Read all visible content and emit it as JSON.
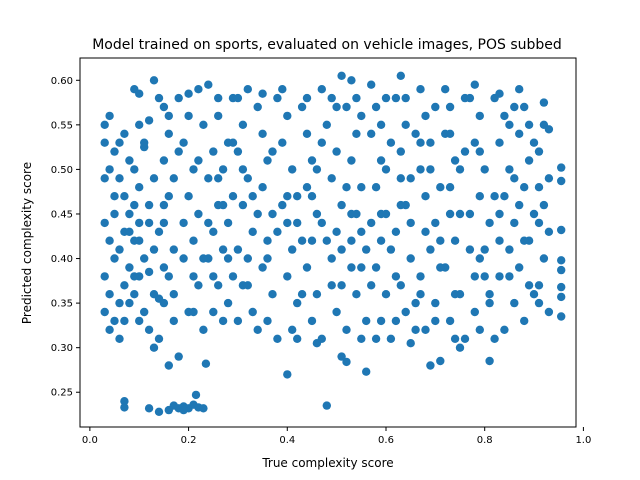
{
  "chart_data": {
    "type": "scatter",
    "title": "Model trained on sports, evaluated on vehicle images, POS subbed",
    "xlabel": "True complexity score",
    "ylabel": "Predicted complexity score",
    "xlim": [
      -0.02,
      0.985
    ],
    "ylim": [
      0.211,
      0.625
    ],
    "xticks": [
      0.0,
      0.2,
      0.4,
      0.6,
      0.8,
      1.0
    ],
    "xtick_labels": [
      "0.0",
      "0.2",
      "0.4",
      "0.6",
      "0.8",
      "1.0"
    ],
    "yticks": [
      0.25,
      0.3,
      0.35,
      0.4,
      0.45,
      0.5,
      0.55,
      0.6
    ],
    "ytick_labels": [
      "0.25",
      "0.30",
      "0.35",
      "0.40",
      "0.45",
      "0.50",
      "0.55",
      "0.60"
    ],
    "grid": false,
    "series_color": "#1f77b4",
    "points": [
      [
        0.03,
        0.55
      ],
      [
        0.04,
        0.56
      ],
      [
        0.03,
        0.53
      ],
      [
        0.05,
        0.52
      ],
      [
        0.03,
        0.49
      ],
      [
        0.04,
        0.5
      ],
      [
        0.05,
        0.47
      ],
      [
        0.03,
        0.44
      ],
      [
        0.04,
        0.42
      ],
      [
        0.05,
        0.4
      ],
      [
        0.03,
        0.38
      ],
      [
        0.04,
        0.36
      ],
      [
        0.03,
        0.34
      ],
      [
        0.05,
        0.33
      ],
      [
        0.04,
        0.32
      ],
      [
        0.06,
        0.31
      ],
      [
        0.07,
        0.24
      ],
      [
        0.07,
        0.233
      ],
      [
        0.06,
        0.35
      ],
      [
        0.07,
        0.37
      ],
      [
        0.08,
        0.39
      ],
      [
        0.06,
        0.41
      ],
      [
        0.07,
        0.43
      ],
      [
        0.08,
        0.45
      ],
      [
        0.07,
        0.47
      ],
      [
        0.06,
        0.49
      ],
      [
        0.08,
        0.51
      ],
      [
        0.07,
        0.54
      ],
      [
        0.09,
        0.5
      ],
      [
        0.1,
        0.48
      ],
      [
        0.09,
        0.46
      ],
      [
        0.1,
        0.44
      ],
      [
        0.09,
        0.42
      ],
      [
        0.11,
        0.4
      ],
      [
        0.1,
        0.38
      ],
      [
        0.09,
        0.36
      ],
      [
        0.11,
        0.34
      ],
      [
        0.1,
        0.33
      ],
      [
        0.12,
        0.32
      ],
      [
        0.09,
        0.59
      ],
      [
        0.1,
        0.585
      ],
      [
        0.12,
        0.555
      ],
      [
        0.11,
        0.525
      ],
      [
        0.13,
        0.49
      ],
      [
        0.12,
        0.46
      ],
      [
        0.14,
        0.43
      ],
      [
        0.13,
        0.41
      ],
      [
        0.12,
        0.385
      ],
      [
        0.14,
        0.355
      ],
      [
        0.13,
        0.3
      ],
      [
        0.14,
        0.31
      ],
      [
        0.12,
        0.232
      ],
      [
        0.14,
        0.228
      ],
      [
        0.13,
        0.6
      ],
      [
        0.15,
        0.57
      ],
      [
        0.16,
        0.54
      ],
      [
        0.15,
        0.51
      ],
      [
        0.16,
        0.47
      ],
      [
        0.15,
        0.44
      ],
      [
        0.17,
        0.41
      ],
      [
        0.16,
        0.38
      ],
      [
        0.15,
        0.35
      ],
      [
        0.17,
        0.33
      ],
      [
        0.16,
        0.28
      ],
      [
        0.18,
        0.29
      ],
      [
        0.17,
        0.235
      ],
      [
        0.18,
        0.232
      ],
      [
        0.19,
        0.234
      ],
      [
        0.2,
        0.232
      ],
      [
        0.21,
        0.236
      ],
      [
        0.215,
        0.247
      ],
      [
        0.22,
        0.233
      ],
      [
        0.23,
        0.232
      ],
      [
        0.16,
        0.23
      ],
      [
        0.19,
        0.23
      ],
      [
        0.235,
        0.282
      ],
      [
        0.18,
        0.58
      ],
      [
        0.2,
        0.56
      ],
      [
        0.19,
        0.53
      ],
      [
        0.21,
        0.5
      ],
      [
        0.2,
        0.47
      ],
      [
        0.22,
        0.45
      ],
      [
        0.21,
        0.42
      ],
      [
        0.19,
        0.4
      ],
      [
        0.22,
        0.37
      ],
      [
        0.2,
        0.34
      ],
      [
        0.23,
        0.32
      ],
      [
        0.22,
        0.59
      ],
      [
        0.24,
        0.595
      ],
      [
        0.23,
        0.55
      ],
      [
        0.25,
        0.52
      ],
      [
        0.24,
        0.49
      ],
      [
        0.26,
        0.46
      ],
      [
        0.25,
        0.43
      ],
      [
        0.24,
        0.4
      ],
      [
        0.26,
        0.37
      ],
      [
        0.25,
        0.34
      ],
      [
        0.27,
        0.33
      ],
      [
        0.26,
        0.56
      ],
      [
        0.28,
        0.53
      ],
      [
        0.27,
        0.5
      ],
      [
        0.29,
        0.47
      ],
      [
        0.28,
        0.44
      ],
      [
        0.27,
        0.41
      ],
      [
        0.29,
        0.38
      ],
      [
        0.28,
        0.35
      ],
      [
        0.3,
        0.33
      ],
      [
        0.29,
        0.58
      ],
      [
        0.31,
        0.55
      ],
      [
        0.3,
        0.52
      ],
      [
        0.32,
        0.49
      ],
      [
        0.31,
        0.46
      ],
      [
        0.33,
        0.43
      ],
      [
        0.32,
        0.4
      ],
      [
        0.31,
        0.37
      ],
      [
        0.33,
        0.34
      ],
      [
        0.34,
        0.32
      ],
      [
        0.32,
        0.59
      ],
      [
        0.34,
        0.57
      ],
      [
        0.35,
        0.54
      ],
      [
        0.36,
        0.51
      ],
      [
        0.35,
        0.48
      ],
      [
        0.37,
        0.45
      ],
      [
        0.36,
        0.42
      ],
      [
        0.35,
        0.39
      ],
      [
        0.37,
        0.36
      ],
      [
        0.36,
        0.33
      ],
      [
        0.38,
        0.31
      ],
      [
        0.38,
        0.58
      ],
      [
        0.4,
        0.56
      ],
      [
        0.39,
        0.53
      ],
      [
        0.41,
        0.5
      ],
      [
        0.4,
        0.47
      ],
      [
        0.42,
        0.44
      ],
      [
        0.41,
        0.41
      ],
      [
        0.4,
        0.38
      ],
      [
        0.42,
        0.35
      ],
      [
        0.41,
        0.32
      ],
      [
        0.4,
        0.27
      ],
      [
        0.42,
        0.31
      ],
      [
        0.43,
        0.57
      ],
      [
        0.44,
        0.54
      ],
      [
        0.45,
        0.51
      ],
      [
        0.44,
        0.48
      ],
      [
        0.46,
        0.45
      ],
      [
        0.45,
        0.42
      ],
      [
        0.44,
        0.39
      ],
      [
        0.46,
        0.36
      ],
      [
        0.45,
        0.33
      ],
      [
        0.47,
        0.31
      ],
      [
        0.46,
        0.305
      ],
      [
        0.48,
        0.235
      ],
      [
        0.47,
        0.59
      ],
      [
        0.49,
        0.58
      ],
      [
        0.48,
        0.55
      ],
      [
        0.5,
        0.52
      ],
      [
        0.49,
        0.49
      ],
      [
        0.51,
        0.46
      ],
      [
        0.5,
        0.43
      ],
      [
        0.49,
        0.4
      ],
      [
        0.51,
        0.37
      ],
      [
        0.5,
        0.34
      ],
      [
        0.52,
        0.32
      ],
      [
        0.51,
        0.29
      ],
      [
        0.52,
        0.284
      ],
      [
        0.51,
        0.605
      ],
      [
        0.53,
        0.6
      ],
      [
        0.52,
        0.57
      ],
      [
        0.54,
        0.54
      ],
      [
        0.53,
        0.51
      ],
      [
        0.55,
        0.48
      ],
      [
        0.54,
        0.45
      ],
      [
        0.53,
        0.42
      ],
      [
        0.55,
        0.39
      ],
      [
        0.54,
        0.36
      ],
      [
        0.56,
        0.33
      ],
      [
        0.55,
        0.31
      ],
      [
        0.56,
        0.273
      ],
      [
        0.57,
        0.595
      ],
      [
        0.58,
        0.57
      ],
      [
        0.57,
        0.54
      ],
      [
        0.59,
        0.51
      ],
      [
        0.58,
        0.48
      ],
      [
        0.6,
        0.45
      ],
      [
        0.59,
        0.42
      ],
      [
        0.58,
        0.39
      ],
      [
        0.6,
        0.36
      ],
      [
        0.59,
        0.33
      ],
      [
        0.61,
        0.31
      ],
      [
        0.63,
        0.605
      ],
      [
        0.62,
        0.58
      ],
      [
        0.64,
        0.55
      ],
      [
        0.63,
        0.52
      ],
      [
        0.65,
        0.49
      ],
      [
        0.64,
        0.46
      ],
      [
        0.62,
        0.43
      ],
      [
        0.65,
        0.4
      ],
      [
        0.63,
        0.37
      ],
      [
        0.64,
        0.34
      ],
      [
        0.66,
        0.32
      ],
      [
        0.65,
        0.305
      ],
      [
        0.67,
        0.59
      ],
      [
        0.68,
        0.56
      ],
      [
        0.67,
        0.53
      ],
      [
        0.69,
        0.5
      ],
      [
        0.68,
        0.47
      ],
      [
        0.7,
        0.44
      ],
      [
        0.69,
        0.41
      ],
      [
        0.67,
        0.38
      ],
      [
        0.7,
        0.35
      ],
      [
        0.68,
        0.32
      ],
      [
        0.69,
        0.28
      ],
      [
        0.71,
        0.285
      ],
      [
        0.72,
        0.59
      ],
      [
        0.73,
        0.57
      ],
      [
        0.72,
        0.54
      ],
      [
        0.74,
        0.51
      ],
      [
        0.73,
        0.48
      ],
      [
        0.75,
        0.45
      ],
      [
        0.74,
        0.42
      ],
      [
        0.72,
        0.39
      ],
      [
        0.75,
        0.36
      ],
      [
        0.73,
        0.33
      ],
      [
        0.76,
        0.31
      ],
      [
        0.75,
        0.3
      ],
      [
        0.77,
        0.58
      ],
      [
        0.78,
        0.595
      ],
      [
        0.79,
        0.56
      ],
      [
        0.78,
        0.53
      ],
      [
        0.8,
        0.5
      ],
      [
        0.79,
        0.47
      ],
      [
        0.81,
        0.44
      ],
      [
        0.8,
        0.41
      ],
      [
        0.78,
        0.38
      ],
      [
        0.81,
        0.35
      ],
      [
        0.79,
        0.32
      ],
      [
        0.82,
        0.31
      ],
      [
        0.81,
        0.285
      ],
      [
        0.83,
        0.585
      ],
      [
        0.84,
        0.56
      ],
      [
        0.83,
        0.53
      ],
      [
        0.85,
        0.5
      ],
      [
        0.84,
        0.47
      ],
      [
        0.86,
        0.44
      ],
      [
        0.85,
        0.41
      ],
      [
        0.83,
        0.38
      ],
      [
        0.86,
        0.35
      ],
      [
        0.84,
        0.32
      ],
      [
        0.87,
        0.59
      ],
      [
        0.88,
        0.57
      ],
      [
        0.87,
        0.54
      ],
      [
        0.89,
        0.51
      ],
      [
        0.88,
        0.48
      ],
      [
        0.9,
        0.45
      ],
      [
        0.89,
        0.42
      ],
      [
        0.87,
        0.39
      ],
      [
        0.9,
        0.36
      ],
      [
        0.88,
        0.33
      ],
      [
        0.91,
        0.35
      ],
      [
        0.92,
        0.55
      ],
      [
        0.91,
        0.52
      ],
      [
        0.93,
        0.49
      ],
      [
        0.92,
        0.46
      ],
      [
        0.93,
        0.43
      ],
      [
        0.92,
        0.4
      ],
      [
        0.91,
        0.37
      ],
      [
        0.93,
        0.34
      ],
      [
        0.92,
        0.575
      ],
      [
        0.93,
        0.545
      ],
      [
        0.955,
        0.502
      ],
      [
        0.955,
        0.487
      ],
      [
        0.955,
        0.432
      ],
      [
        0.955,
        0.398
      ],
      [
        0.955,
        0.387
      ],
      [
        0.955,
        0.368
      ],
      [
        0.955,
        0.357
      ],
      [
        0.955,
        0.335
      ],
      [
        0.1,
        0.55
      ],
      [
        0.11,
        0.53
      ],
      [
        0.05,
        0.45
      ],
      [
        0.08,
        0.43
      ],
      [
        0.09,
        0.38
      ],
      [
        0.15,
        0.39
      ],
      [
        0.17,
        0.36
      ],
      [
        0.21,
        0.38
      ],
      [
        0.24,
        0.44
      ],
      [
        0.27,
        0.46
      ],
      [
        0.3,
        0.41
      ],
      [
        0.33,
        0.47
      ],
      [
        0.37,
        0.52
      ],
      [
        0.4,
        0.44
      ],
      [
        0.43,
        0.36
      ],
      [
        0.46,
        0.5
      ],
      [
        0.48,
        0.42
      ],
      [
        0.52,
        0.48
      ],
      [
        0.55,
        0.56
      ],
      [
        0.57,
        0.44
      ],
      [
        0.6,
        0.5
      ],
      [
        0.62,
        0.38
      ],
      [
        0.66,
        0.54
      ],
      [
        0.68,
        0.43
      ],
      [
        0.71,
        0.48
      ],
      [
        0.74,
        0.36
      ],
      [
        0.76,
        0.52
      ],
      [
        0.79,
        0.4
      ],
      [
        0.82,
        0.47
      ],
      [
        0.85,
        0.55
      ],
      [
        0.88,
        0.42
      ],
      [
        0.9,
        0.53
      ],
      [
        0.58,
        0.31
      ],
      [
        0.62,
        0.33
      ],
      [
        0.66,
        0.35
      ],
      [
        0.7,
        0.33
      ],
      [
        0.74,
        0.31
      ],
      [
        0.78,
        0.34
      ],
      [
        0.5,
        0.57
      ],
      [
        0.54,
        0.58
      ],
      [
        0.6,
        0.58
      ],
      [
        0.64,
        0.58
      ],
      [
        0.7,
        0.57
      ],
      [
        0.76,
        0.58
      ],
      [
        0.82,
        0.58
      ],
      [
        0.86,
        0.57
      ],
      [
        0.44,
        0.58
      ],
      [
        0.39,
        0.59
      ],
      [
        0.35,
        0.585
      ],
      [
        0.3,
        0.58
      ],
      [
        0.26,
        0.58
      ],
      [
        0.2,
        0.585
      ],
      [
        0.14,
        0.58
      ],
      [
        0.16,
        0.56
      ],
      [
        0.18,
        0.52
      ],
      [
        0.22,
        0.51
      ],
      [
        0.26,
        0.49
      ],
      [
        0.29,
        0.53
      ],
      [
        0.31,
        0.5
      ],
      [
        0.34,
        0.45
      ],
      [
        0.38,
        0.43
      ],
      [
        0.42,
        0.47
      ],
      [
        0.47,
        0.44
      ],
      [
        0.53,
        0.39
      ],
      [
        0.56,
        0.41
      ],
      [
        0.59,
        0.45
      ],
      [
        0.61,
        0.53
      ],
      [
        0.63,
        0.46
      ],
      [
        0.67,
        0.5
      ],
      [
        0.71,
        0.42
      ],
      [
        0.73,
        0.54
      ],
      [
        0.77,
        0.45
      ],
      [
        0.8,
        0.38
      ],
      [
        0.83,
        0.45
      ],
      [
        0.86,
        0.49
      ],
      [
        0.89,
        0.37
      ],
      [
        0.91,
        0.44
      ],
      [
        0.06,
        0.53
      ],
      [
        0.07,
        0.33
      ],
      [
        0.08,
        0.35
      ],
      [
        0.1,
        0.42
      ],
      [
        0.12,
        0.44
      ],
      [
        0.13,
        0.36
      ],
      [
        0.15,
        0.46
      ],
      [
        0.17,
        0.49
      ],
      [
        0.19,
        0.44
      ],
      [
        0.21,
        0.34
      ],
      [
        0.23,
        0.4
      ],
      [
        0.25,
        0.38
      ],
      [
        0.28,
        0.4
      ],
      [
        0.32,
        0.37
      ],
      [
        0.36,
        0.4
      ],
      [
        0.39,
        0.46
      ],
      [
        0.43,
        0.42
      ],
      [
        0.45,
        0.47
      ],
      [
        0.47,
        0.53
      ],
      [
        0.49,
        0.37
      ],
      [
        0.51,
        0.41
      ],
      [
        0.53,
        0.45
      ],
      [
        0.55,
        0.43
      ],
      [
        0.57,
        0.37
      ],
      [
        0.59,
        0.55
      ],
      [
        0.61,
        0.41
      ],
      [
        0.63,
        0.49
      ],
      [
        0.65,
        0.44
      ],
      [
        0.67,
        0.36
      ],
      [
        0.69,
        0.53
      ],
      [
        0.71,
        0.39
      ],
      [
        0.73,
        0.45
      ],
      [
        0.75,
        0.5
      ],
      [
        0.77,
        0.41
      ],
      [
        0.79,
        0.52
      ],
      [
        0.81,
        0.36
      ],
      [
        0.83,
        0.42
      ],
      [
        0.85,
        0.38
      ],
      [
        0.87,
        0.46
      ],
      [
        0.89,
        0.55
      ],
      [
        0.91,
        0.48
      ]
    ]
  }
}
